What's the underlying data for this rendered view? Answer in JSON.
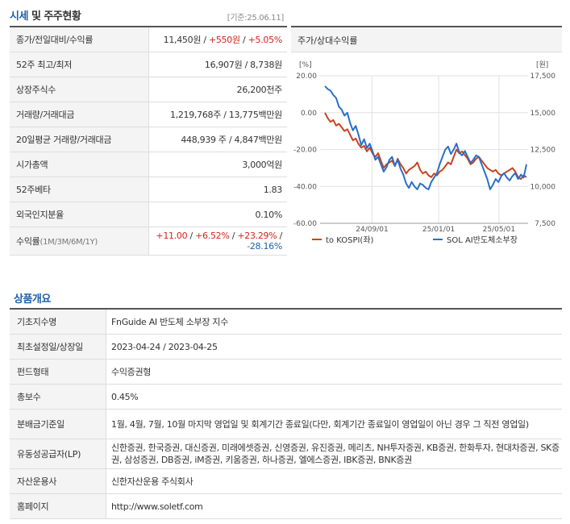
{
  "price_section": {
    "title_prefix": "시세",
    "title_rest": " 및 주주현황",
    "base_date": "[기준:25.06.11]",
    "rows": [
      {
        "label": "종가/전일대비/수익률"
      },
      {
        "label": "52주 최고/최저",
        "value": "16,907원 / 8,738원"
      },
      {
        "label": "상장주식수",
        "value": "26,200천주"
      },
      {
        "label": "거래량/거래대금",
        "value": "1,219,768주 / 13,775백만원"
      },
      {
        "label": "20일평균 거래량/거래대금",
        "value": "448,939 주 / 4,847백만원"
      },
      {
        "label": "시가총액",
        "value": "3,000억원"
      },
      {
        "label": "52주베타",
        "value": "1.83"
      },
      {
        "label": "외국인지분율",
        "value": "0.10%"
      },
      {
        "label": "수익률",
        "sublabel": "(1M/3M/6M/1Y)"
      }
    ],
    "close": {
      "price": "11,450원",
      "sep": " / ",
      "change": "+550원",
      "sep2": " / ",
      "rate": "+5.05%"
    },
    "returns": {
      "r1m": "+11.00",
      "r3m": "+6.52%",
      "r6m": "+23.29%",
      "r1y": "-28.16%",
      "sep": " / "
    }
  },
  "chart": {
    "title": "주가/상대수익률",
    "left_unit": "[%]",
    "right_unit": "[원]",
    "chart_data": {
      "type": "line",
      "x_ticks": [
        "24/09/01",
        "25/01/01",
        "25/05/01"
      ],
      "y_left_ticks": [
        "20.00",
        "0.00",
        "-20.00",
        "-40.00",
        "-60.00"
      ],
      "y_right_ticks": [
        "17,500",
        "15,000",
        "12,500",
        "10,000",
        "7,500"
      ],
      "y_left_range": [
        -60,
        20
      ],
      "y_right_range": [
        7500,
        17500
      ],
      "series": [
        {
          "name": "to KOSPI(좌)",
          "color": "#c8441e",
          "axis": "left",
          "values": [
            0,
            -3,
            -5,
            -4,
            -7,
            -6,
            -8,
            -10,
            -9,
            -12,
            -15,
            -14,
            -17,
            -19,
            -18,
            -21,
            -19,
            -22,
            -24,
            -22,
            -26,
            -30,
            -28,
            -27,
            -26,
            -29,
            -25,
            -28,
            -30,
            -33,
            -31,
            -30,
            -29,
            -27,
            -31,
            -33,
            -32,
            -34,
            -35,
            -33,
            -34,
            -32,
            -31,
            -29,
            -27,
            -28,
            -24,
            -20,
            -22,
            -21,
            -23,
            -25,
            -28,
            -27,
            -25,
            -24,
            -26,
            -28,
            -30,
            -31,
            -32,
            -31,
            -33,
            -34,
            -33,
            -32,
            -31,
            -30,
            -32,
            -35,
            -36,
            -34,
            -35
          ]
        },
        {
          "name": "SOL AI반도체소부장",
          "color": "#2a6fc9",
          "axis": "right",
          "values": [
            16800,
            16600,
            16500,
            16200,
            16000,
            15400,
            15200,
            14800,
            15000,
            14300,
            13800,
            14100,
            13500,
            12800,
            13200,
            12600,
            12900,
            12400,
            11800,
            12000,
            11500,
            11000,
            11300,
            11800,
            12000,
            11400,
            11800,
            11200,
            10800,
            10200,
            9900,
            10300,
            10000,
            9800,
            10200,
            10100,
            9900,
            9800,
            10300,
            10600,
            10900,
            11500,
            12000,
            12500,
            12700,
            12200,
            12500,
            12900,
            12300,
            12100,
            12400,
            12000,
            11600,
            11800,
            12100,
            12000,
            11500,
            11000,
            10500,
            9800,
            10100,
            10500,
            10300,
            10700,
            10900,
            10600,
            10400,
            10700,
            10900,
            10500,
            10800,
            10600,
            11500
          ]
        }
      ]
    }
  },
  "overview": {
    "title": "상품개요",
    "rows": [
      {
        "label": "기초지수명",
        "value": "FnGuide AI 반도체 소부장 지수"
      },
      {
        "label": "최초설정일/상장일",
        "value": "2023-04-24 / 2023-04-25"
      },
      {
        "label": "펀드형태",
        "value": "수익증권형"
      },
      {
        "label": "총보수",
        "value": "0.45%"
      },
      {
        "label": "분배금기준일",
        "value": "1월, 4월, 7월, 10월 마지막 영업일 및 회계기간 종료일(다만, 회계기간 종료일이 영업일이 아닌 경우 그 직전 영업일)"
      },
      {
        "label": "유동성공급자(LP)",
        "value": "신한증권, 한국증권, 대신증권, 미래에셋증권, 신영증권, 유진증권, 메리츠, NH투자증권, KB증권, 한화투자, 현대차증권, SK증권, 삼성증권, DB증권, iM증권, 키움증권, 하나증권, 엘에스증권, IBK증권, BNK증권"
      },
      {
        "label": "자산운용사",
        "value": "신한자산운용 주식회사"
      },
      {
        "label": "홈페이지",
        "value": "http://www.soletf.com"
      }
    ]
  }
}
